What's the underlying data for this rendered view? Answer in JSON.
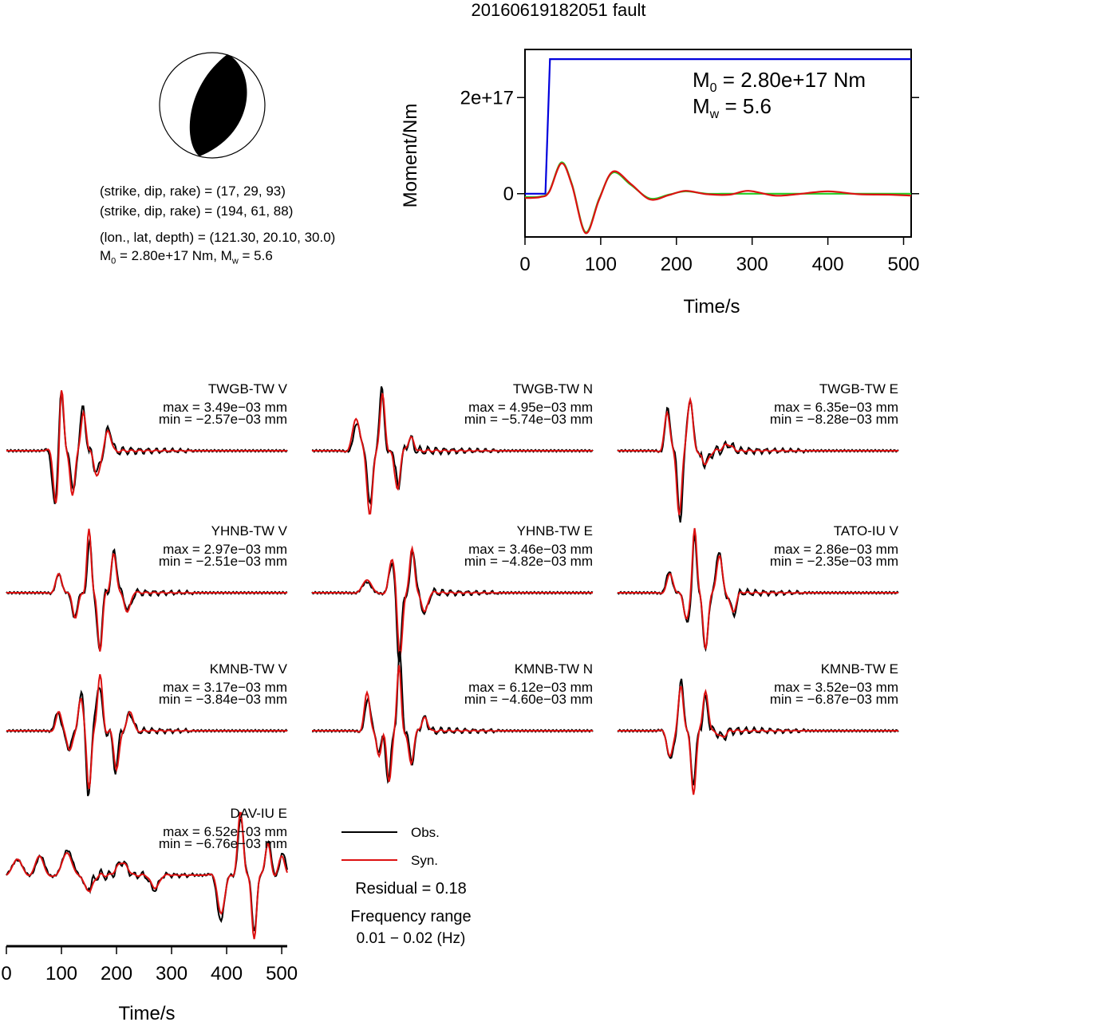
{
  "title": "20160619182051 fault",
  "mechanism": {
    "plane1": "(strike, dip, rake) = (17, 29, 93)",
    "plane2": "(strike, dip, rake) = (194, 61, 88)",
    "location": "(lon., lat, depth) = (121.30, 20.10, 30.0)",
    "moment_prefix": "M",
    "moment_sub": "0",
    "moment_mid": " = 2.80e+17 Nm, M",
    "moment_sub2": "w",
    "moment_suffix": " = 5.6"
  },
  "moment_plot": {
    "ylabel": "Moment/Nm",
    "xlabel": "Time/s",
    "yticks": [
      {
        "v": 0,
        "label": "0"
      },
      {
        "v": 2e+17,
        "label": "2e+17"
      }
    ],
    "xticks": [
      0,
      100,
      200,
      300,
      400,
      500
    ],
    "xlim": [
      0,
      510
    ],
    "ylim": [
      -9e+16,
      3e+17
    ],
    "m0_text": "M",
    "m0_sub": "0",
    "m0_rest": " = 2.80e+17 Nm",
    "mw_text": "M",
    "mw_sub": "w",
    "mw_rest": " = 5.6",
    "colors": {
      "moment": "#0000dd",
      "obs_stf": "#22cc22",
      "syn_stf": "#dd1111"
    }
  },
  "chart_data": [
    {
      "type": "line",
      "title": "",
      "xlabel": "Time/s",
      "ylabel": "Moment/Nm",
      "xlim": [
        0,
        510
      ],
      "ylim": [
        -9e+16,
        3e+17
      ],
      "series": [
        {
          "name": "",
          "color": "#0000dd",
          "x": [
            0,
            27,
            33,
            510
          ],
          "y": [
            0,
            0,
            2.8e+17,
            2.8e+17
          ]
        },
        {
          "name": "",
          "color": "#22cc22",
          "x": [
            0,
            20,
            32,
            48,
            62,
            80,
            98,
            116,
            140,
            165,
            190,
            212,
            240,
            270,
            300,
            340,
            400,
            460,
            510
          ],
          "y": [
            -7000000000000000.0,
            -6000000000000000.0,
            5000000000000000.0,
            6.5e+16,
            2e+16,
            -8e+16,
            -1e+16,
            4.4e+16,
            1.8e+16,
            -1e+16,
            -2000000000000000.0,
            5000000000000000.0,
            0.0,
            0.0,
            0.0,
            0.0,
            0.0,
            0.0,
            0.0
          ]
        },
        {
          "name": "",
          "color": "#dd1111",
          "x": [
            0,
            20,
            32,
            48,
            62,
            80,
            98,
            116,
            140,
            165,
            190,
            212,
            240,
            270,
            295,
            330,
            360,
            400,
            440,
            480,
            510
          ],
          "y": [
            -9000000000000000.0,
            -7000000000000000.0,
            4000000000000000.0,
            6.3e+16,
            1.8e+16,
            -8.2e+16,
            -1.2e+16,
            4.6e+16,
            2e+16,
            -1.2e+16,
            -3000000000000000.0,
            6000000000000000.0,
            -1000000000000000.0,
            -2000000000000000.0,
            6000000000000000.0,
            -4000000000000000.0,
            -1000000000000000.0,
            5000000000000000.0,
            -1000000000000000.0,
            -2000000000000000.0,
            -4000000000000000.0
          ]
        }
      ]
    },
    {
      "type": "line",
      "xlabel": "Time/s",
      "xlim": [
        0,
        510
      ],
      "xticks": [
        0,
        100,
        200,
        300,
        400,
        500
      ],
      "stations": [
        {
          "name": "TWGB-TW V",
          "max": "max = 3.49e−03 mm",
          "min": "min = −2.57e−03 mm",
          "seed": 1,
          "ev": [
            [
              90,
              -0.8,
              9
            ],
            [
              100,
              1,
              7
            ],
            [
              120,
              -0.7,
              8
            ],
            [
              140,
              0.6,
              8
            ],
            [
              165,
              -0.4,
              10
            ],
            [
              185,
              0.3,
              10
            ]
          ]
        },
        {
          "name": "TWGB-TW N",
          "max": "max = 4.95e−03 mm",
          "min": "min = −5.74e−03 mm",
          "seed": 2,
          "ev": [
            [
              80,
              0.5,
              12
            ],
            [
              105,
              -1,
              9
            ],
            [
              128,
              0.9,
              8
            ],
            [
              155,
              -0.6,
              9
            ],
            [
              180,
              0.2,
              10
            ]
          ]
        },
        {
          "name": "TWGB-TW E",
          "max": "max = 6.35e−03 mm",
          "min": "min = −8.28e−03 mm",
          "seed": 3,
          "ev": [
            [
              90,
              0.6,
              9
            ],
            [
              112,
              -1,
              8
            ],
            [
              132,
              0.8,
              9
            ],
            [
              160,
              -0.2,
              12
            ],
            [
              200,
              0.1,
              15
            ]
          ]
        },
        {
          "name": "YHNB-TW V",
          "max": "max = 2.97e−03 mm",
          "min": "min = −2.51e−03 mm",
          "seed": 4,
          "ev": [
            [
              95,
              0.3,
              10
            ],
            [
              125,
              -0.4,
              9
            ],
            [
              150,
              1,
              7
            ],
            [
              170,
              -0.9,
              8
            ],
            [
              195,
              0.6,
              9
            ],
            [
              220,
              -0.3,
              10
            ]
          ]
        },
        {
          "name": "YHNB-TW E",
          "max": "max = 3.46e−03 mm",
          "min": "min = −4.82e−03 mm",
          "seed": 5,
          "ev": [
            [
              100,
              0.2,
              15
            ],
            [
              145,
              0.5,
              10
            ],
            [
              160,
              -1,
              8
            ],
            [
              182,
              0.7,
              8
            ],
            [
              205,
              -0.3,
              10
            ]
          ]
        },
        {
          "name": "TATO-IU V",
          "max": "max = 2.86e−03 mm",
          "min": "min = −2.35e−03 mm",
          "seed": 6,
          "ev": [
            [
              95,
              0.3,
              10
            ],
            [
              125,
              -0.4,
              9
            ],
            [
              140,
              1,
              7
            ],
            [
              160,
              -0.9,
              8
            ],
            [
              185,
              0.6,
              9
            ],
            [
              210,
              -0.3,
              10
            ]
          ]
        },
        {
          "name": "KMNB-TW V",
          "max": "max = 3.17e−03 mm",
          "min": "min = −3.84e−03 mm",
          "seed": 7,
          "ev": [
            [
              95,
              0.3,
              9
            ],
            [
              115,
              -0.3,
              9
            ],
            [
              135,
              0.5,
              8
            ],
            [
              150,
              -0.9,
              7
            ],
            [
              170,
              0.9,
              8
            ],
            [
              200,
              -0.6,
              9
            ],
            [
              225,
              0.3,
              10
            ]
          ]
        },
        {
          "name": "KMNB-TW N",
          "max": "max = 6.12e−03 mm",
          "min": "min = −4.60e−03 mm",
          "seed": 8,
          "ev": [
            [
              100,
              0.6,
              9
            ],
            [
              122,
              -0.4,
              8
            ],
            [
              140,
              -0.8,
              8
            ],
            [
              158,
              1,
              7
            ],
            [
              180,
              -0.5,
              9
            ],
            [
              205,
              0.2,
              10
            ]
          ]
        },
        {
          "name": "KMNB-TW E",
          "max": "max = 3.52e−03 mm",
          "min": "min = −6.87e−03 mm",
          "seed": 9,
          "ev": [
            [
              95,
              -0.4,
              10
            ],
            [
              115,
              0.7,
              8
            ],
            [
              138,
              -1,
              8
            ],
            [
              160,
              0.6,
              9
            ],
            [
              190,
              -0.1,
              12
            ]
          ]
        },
        {
          "name": "DAV-IU E",
          "max": "max = 6.52e−03 mm",
          "min": "min = −6.76e−03 mm",
          "seed": 10,
          "ev": [
            [
              20,
              0.25,
              16
            ],
            [
              60,
              0.3,
              14
            ],
            [
              110,
              0.35,
              16
            ],
            [
              150,
              -0.25,
              14
            ],
            [
              210,
              0.2,
              18
            ],
            [
              270,
              -0.2,
              14
            ],
            [
              390,
              -0.6,
              12
            ],
            [
              425,
              1,
              9
            ],
            [
              450,
              -1,
              8
            ],
            [
              475,
              0.5,
              9
            ],
            [
              500,
              0.3,
              10
            ]
          ]
        }
      ]
    }
  ],
  "legend": {
    "obs": "Obs.",
    "syn": "Syn.",
    "obs_color": "#000000",
    "syn_color": "#dd1111"
  },
  "residual": "Residual = 0.18",
  "freq_title": "Frequency range",
  "freq_range": "0.01 − 0.02 (Hz)"
}
